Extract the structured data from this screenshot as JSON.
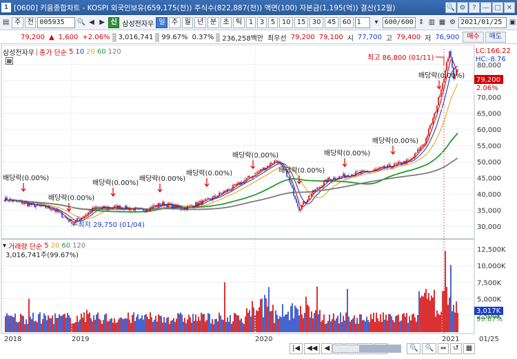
{
  "window": {
    "number": "1",
    "title": "[0600] 키움종합차트 - KOSPI 외국인보유(659,175(천)) 주식수(822,887(천)) 액면(100) 자본금(1,195(억)) 결산(12월)",
    "buttons": [
      "🔍",
      "⚙",
      "?",
      "—",
      "□",
      "✕"
    ]
  },
  "toolbar": {
    "market": "주",
    "period_sel": "전",
    "code": "005935",
    "name": "삼성전자우",
    "name_badge": "신",
    "periods": [
      "일",
      "주",
      "월",
      "년",
      "분",
      "초",
      "틱"
    ],
    "active_period": "일",
    "numbers": [
      "1",
      "3",
      "5",
      "10",
      "15",
      "30",
      "45",
      "60"
    ],
    "n_input": "1",
    "count": "600/600",
    "date": "2021/01/25"
  },
  "quote": {
    "price": "79,200",
    "change": "1,600",
    "rate": "+2.06%",
    "volume": "3,016,741",
    "vol_ratio": "99.67%",
    "vol_rate": "0.37%",
    "amount": "236,258백만",
    "seller_label": "최우선",
    "ask": "79,200",
    "bid": "79,100",
    "open_label": "시",
    "open": "77,700",
    "high_label": "고",
    "high": "79,400",
    "low_label": "저",
    "low": "76,900",
    "buy_btn": "매수",
    "sell_btn": "매도"
  },
  "price_panel": {
    "name": "삼성전자우",
    "legend_label": "종가 단순",
    "ma": [
      "5",
      "10",
      "20",
      "60",
      "120"
    ],
    "ma_colors": [
      "#d10000",
      "#1a3fc4",
      "#e8a317",
      "#1e9a2c",
      "#7a7a7a"
    ],
    "lc": "LC:166.22",
    "hc": "HC:-8.76",
    "high_note": "최고 86,800 (01/11)",
    "low_note": "←최저 29,750 (01/04)",
    "cur_price": "79,200",
    "cur_rate": "2.06%",
    "yaxis": [
      "80,000",
      "75,000",
      "70,000",
      "65,000",
      "60,000",
      "55,000",
      "50,000",
      "45,000",
      "40,000",
      "35,000",
      "30,000"
    ],
    "divs": [
      {
        "label": "배당락(0.00%)",
        "x": 34,
        "y": 273
      },
      {
        "label": "배당락(0.00%)",
        "x": 100,
        "y": 302
      },
      {
        "label": "배당락(0.00%)",
        "x": 164,
        "y": 280
      },
      {
        "label": "배당락(0.00%)",
        "x": 232,
        "y": 274
      },
      {
        "label": "배당락(0.00%)",
        "x": 300,
        "y": 266
      },
      {
        "label": "배당락(0.00%)",
        "x": 367,
        "y": 240
      },
      {
        "label": "배당락(0.00%)",
        "x": 434,
        "y": 262
      },
      {
        "label": "배당락(0.00%)",
        "x": 500,
        "y": 237
      },
      {
        "label": "배당락(0.00%)",
        "x": 570,
        "y": 219
      },
      {
        "label": "배당락(0.00%)",
        "x": 637,
        "y": 124
      }
    ]
  },
  "volume_panel": {
    "legend_label": "거래량 단순",
    "ma": [
      "5",
      "20",
      "60",
      "120"
    ],
    "ma_colors": [
      "#d10000",
      "#e8a317",
      "#1e9a2c",
      "#7a7a7a"
    ],
    "info": "3,016,741주(99.67%)",
    "yaxis": [
      "12,500K",
      "10,000K",
      "7,500K",
      "5,000K",
      "2,500K"
    ],
    "cur": "3,017K",
    "cur_rate": "99.67%"
  },
  "xaxis": {
    "labels": [
      "2018",
      "2019",
      "2020",
      "2021"
    ],
    "end_date": "01/25"
  },
  "chart_data": {
    "type": "line",
    "series": [
      {
        "name": "종가",
        "x": [
          "2018-01",
          "2018-07",
          "2019-01",
          "2019-07",
          "2020-01",
          "2020-03",
          "2020-07",
          "2021-01",
          "2021-01-25"
        ],
        "values": [
          38000,
          36000,
          32000,
          36000,
          50000,
          37000,
          46000,
          84000,
          79200
        ]
      }
    ],
    "ylim": [
      28000,
      84000
    ]
  }
}
